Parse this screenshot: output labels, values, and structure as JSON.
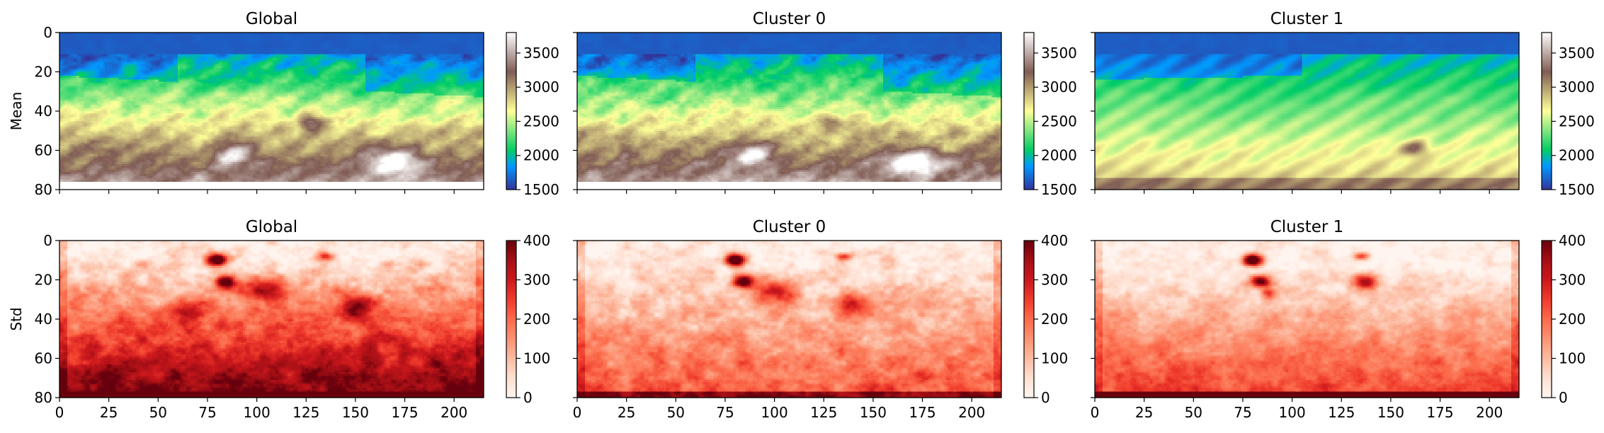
{
  "chart_data": [
    {
      "type": "heatmap",
      "title": "Global",
      "ylabel": "Mean",
      "colormap": "terrain",
      "vmin": 1500,
      "vmax": 3800,
      "colorbar_ticks": [
        1500,
        2000,
        2500,
        3000,
        3500
      ],
      "xlim": [
        0,
        215
      ],
      "ylim": [
        80,
        0
      ],
      "xticks": [],
      "yticks": [
        0,
        20,
        40,
        60,
        80
      ],
      "seed": 3,
      "variant": 0
    },
    {
      "type": "heatmap",
      "title": "Cluster 0",
      "ylabel": "",
      "colormap": "terrain",
      "vmin": 1500,
      "vmax": 3800,
      "colorbar_ticks": [
        1500,
        2000,
        2500,
        3000,
        3500
      ],
      "xlim": [
        0,
        215
      ],
      "ylim": [
        80,
        0
      ],
      "xticks": [],
      "yticks": [],
      "seed": 5,
      "variant": 1
    },
    {
      "type": "heatmap",
      "title": "Cluster 1",
      "ylabel": "",
      "colormap": "terrain",
      "vmin": 1500,
      "vmax": 3800,
      "colorbar_ticks": [
        1500,
        2000,
        2500,
        3000,
        3500
      ],
      "xlim": [
        0,
        215
      ],
      "ylim": [
        80,
        0
      ],
      "xticks": [],
      "yticks": [],
      "seed": 11,
      "variant": 2
    },
    {
      "type": "heatmap",
      "title": "Global",
      "ylabel": "Std",
      "colormap": "reds",
      "vmin": 0,
      "vmax": 400,
      "colorbar_ticks": [
        0,
        100,
        200,
        300,
        400
      ],
      "xlim": [
        0,
        215
      ],
      "ylim": [
        80,
        0
      ],
      "xticks": [
        0,
        25,
        50,
        75,
        100,
        125,
        150,
        175,
        200
      ],
      "yticks": [
        0,
        20,
        40,
        60,
        80
      ],
      "seed": 17,
      "variant": 0
    },
    {
      "type": "heatmap",
      "title": "Cluster 0",
      "ylabel": "",
      "colormap": "reds",
      "vmin": 0,
      "vmax": 400,
      "colorbar_ticks": [
        0,
        100,
        200,
        300,
        400
      ],
      "xlim": [
        0,
        215
      ],
      "ylim": [
        80,
        0
      ],
      "xticks": [
        0,
        25,
        50,
        75,
        100,
        125,
        150,
        175,
        200
      ],
      "yticks": [],
      "seed": 23,
      "variant": 1
    },
    {
      "type": "heatmap",
      "title": "Cluster 1",
      "ylabel": "",
      "colormap": "reds",
      "vmin": 0,
      "vmax": 400,
      "colorbar_ticks": [
        0,
        100,
        200,
        300,
        400
      ],
      "xlim": [
        0,
        215
      ],
      "ylim": [
        80,
        0
      ],
      "xticks": [
        0,
        25,
        50,
        75,
        100,
        125,
        150,
        175,
        200
      ],
      "yticks": [],
      "seed": 29,
      "variant": 2
    }
  ]
}
